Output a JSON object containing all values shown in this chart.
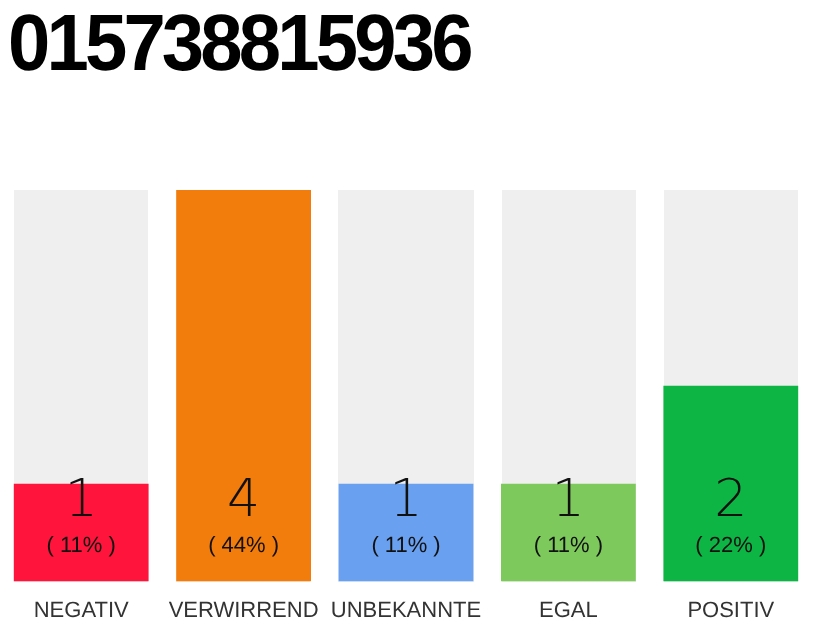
{
  "chart_data": {
    "type": "bar",
    "title": "015738815936",
    "categories": [
      "NEGATIV",
      "VERWIRREND",
      "UNBEKANNTE",
      "EGAL",
      "POSITIV"
    ],
    "values": [
      1,
      4,
      1,
      1,
      2
    ],
    "colors": [
      "#ff143c",
      "#f27c0c",
      "#6aa0f0",
      "#7ec95c",
      "#0db544"
    ],
    "value_labels": [
      "1\n( 11% )",
      "4\n( 44% )",
      "1\n( 11% )",
      "1\n( 11% )",
      "2\n( 22% )"
    ],
    "grid": false,
    "legend": false,
    "tick_labels": "x"
  }
}
